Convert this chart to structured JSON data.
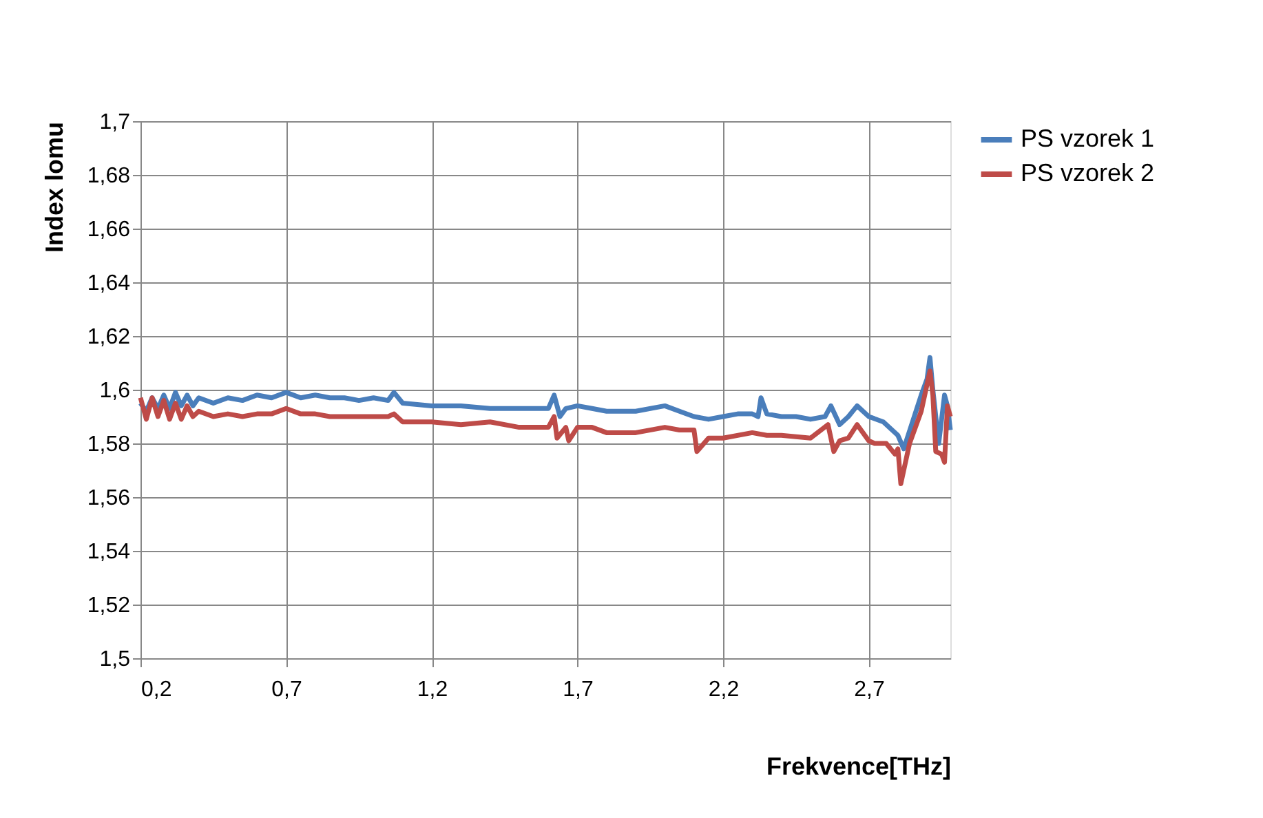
{
  "chart_data": {
    "type": "line",
    "xlabel": "Frekvence[THz]",
    "ylabel": "Index lomu",
    "xlim": [
      0.2,
      2.98
    ],
    "xticks": [
      {
        "value": 0.2,
        "label": "0,2"
      },
      {
        "value": 0.7,
        "label": "0,7"
      },
      {
        "value": 1.2,
        "label": "1,2"
      },
      {
        "value": 1.7,
        "label": "1,7"
      },
      {
        "value": 2.2,
        "label": "2,2"
      },
      {
        "value": 2.7,
        "label": "2,7"
      }
    ],
    "ylim": [
      1.5,
      1.7
    ],
    "yticks": [
      {
        "value": 1.5,
        "label": "1,5"
      },
      {
        "value": 1.52,
        "label": "1,52"
      },
      {
        "value": 1.54,
        "label": "1,54"
      },
      {
        "value": 1.56,
        "label": "1,56"
      },
      {
        "value": 1.58,
        "label": "1,58"
      },
      {
        "value": 1.6,
        "label": "1,6"
      },
      {
        "value": 1.62,
        "label": "1,62"
      },
      {
        "value": 1.64,
        "label": "1,64"
      },
      {
        "value": 1.66,
        "label": "1,66"
      },
      {
        "value": 1.68,
        "label": "1,68"
      },
      {
        "value": 1.7,
        "label": "1,7"
      }
    ],
    "grid": true,
    "legend": "right",
    "marker": "none",
    "line_style": "solid",
    "series": [
      {
        "name": "PS vzorek 1",
        "color": "#4a7ebb",
        "x": [
          0.2,
          0.22,
          0.24,
          0.26,
          0.28,
          0.3,
          0.32,
          0.34,
          0.36,
          0.38,
          0.4,
          0.45,
          0.5,
          0.55,
          0.6,
          0.65,
          0.7,
          0.75,
          0.8,
          0.85,
          0.9,
          0.95,
          1.0,
          1.05,
          1.07,
          1.1,
          1.2,
          1.3,
          1.4,
          1.5,
          1.6,
          1.62,
          1.64,
          1.66,
          1.7,
          1.75,
          1.8,
          1.9,
          2.0,
          2.05,
          2.1,
          2.15,
          2.2,
          2.25,
          2.3,
          2.32,
          2.33,
          2.35,
          2.4,
          2.45,
          2.5,
          2.55,
          2.57,
          2.6,
          2.63,
          2.66,
          2.7,
          2.75,
          2.8,
          2.82,
          2.85,
          2.88,
          2.9,
          2.91,
          2.92,
          2.94,
          2.96,
          2.97,
          2.98
        ],
        "values": [
          1.595,
          1.592,
          1.597,
          1.593,
          1.598,
          1.593,
          1.599,
          1.594,
          1.598,
          1.594,
          1.597,
          1.595,
          1.597,
          1.596,
          1.598,
          1.597,
          1.599,
          1.597,
          1.598,
          1.597,
          1.597,
          1.596,
          1.597,
          1.596,
          1.599,
          1.595,
          1.594,
          1.594,
          1.593,
          1.593,
          1.593,
          1.598,
          1.59,
          1.593,
          1.594,
          1.593,
          1.592,
          1.592,
          1.594,
          1.592,
          1.59,
          1.589,
          1.59,
          1.591,
          1.591,
          1.59,
          1.597,
          1.591,
          1.59,
          1.59,
          1.589,
          1.59,
          1.594,
          1.587,
          1.59,
          1.594,
          1.59,
          1.588,
          1.583,
          1.578,
          1.588,
          1.598,
          1.604,
          1.612,
          1.6,
          1.58,
          1.598,
          1.594,
          1.585
        ]
      },
      {
        "name": "PS vzorek 2",
        "color": "#be4b48",
        "x": [
          0.2,
          0.22,
          0.24,
          0.26,
          0.28,
          0.3,
          0.32,
          0.34,
          0.36,
          0.38,
          0.4,
          0.45,
          0.5,
          0.55,
          0.6,
          0.65,
          0.7,
          0.75,
          0.8,
          0.85,
          0.9,
          0.95,
          1.0,
          1.05,
          1.07,
          1.1,
          1.2,
          1.3,
          1.4,
          1.5,
          1.6,
          1.62,
          1.63,
          1.66,
          1.67,
          1.7,
          1.75,
          1.8,
          1.9,
          2.0,
          2.05,
          2.1,
          2.11,
          2.15,
          2.2,
          2.3,
          2.35,
          2.4,
          2.5,
          2.56,
          2.58,
          2.6,
          2.63,
          2.66,
          2.7,
          2.72,
          2.76,
          2.79,
          2.8,
          2.81,
          2.84,
          2.88,
          2.91,
          2.92,
          2.93,
          2.95,
          2.96,
          2.97,
          2.98
        ],
        "values": [
          1.597,
          1.589,
          1.597,
          1.59,
          1.596,
          1.589,
          1.595,
          1.589,
          1.594,
          1.59,
          1.592,
          1.59,
          1.591,
          1.59,
          1.591,
          1.591,
          1.593,
          1.591,
          1.591,
          1.59,
          1.59,
          1.59,
          1.59,
          1.59,
          1.591,
          1.588,
          1.588,
          1.587,
          1.588,
          1.586,
          1.586,
          1.59,
          1.582,
          1.586,
          1.581,
          1.586,
          1.586,
          1.584,
          1.584,
          1.586,
          1.585,
          1.585,
          1.577,
          1.582,
          1.582,
          1.584,
          1.583,
          1.583,
          1.582,
          1.587,
          1.577,
          1.581,
          1.582,
          1.587,
          1.581,
          1.58,
          1.58,
          1.576,
          1.578,
          1.565,
          1.58,
          1.592,
          1.607,
          1.598,
          1.577,
          1.576,
          1.573,
          1.594,
          1.59
        ]
      }
    ]
  }
}
